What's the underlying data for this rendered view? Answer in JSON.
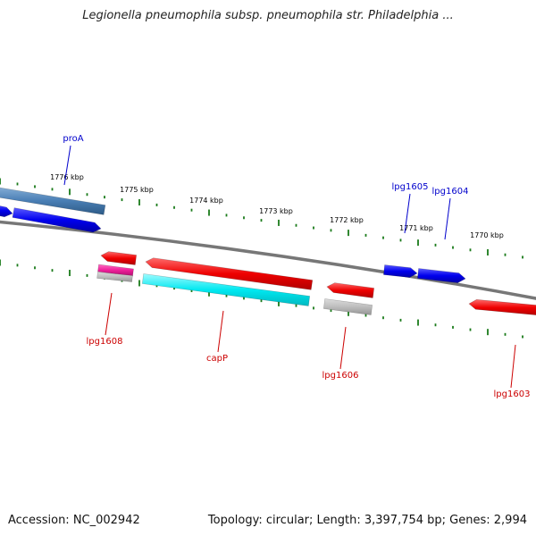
{
  "title": "Legionella pneumophila subsp. pneumophila str. Philadelphia ...",
  "footer": {
    "accession": "Accession: NC_002942",
    "stats": "Topology: circular; Length: 3,397,754 bp; Genes: 2,994"
  },
  "scale_labels": [
    "1776 kbp",
    "1775 kbp",
    "1774 kbp",
    "1773 kbp",
    "1772 kbp",
    "1771 kbp",
    "1770 kbp"
  ],
  "genes": [
    {
      "label": "proA",
      "strand": "forward"
    },
    {
      "label": "lpg1605",
      "strand": "forward"
    },
    {
      "label": "lpg1604",
      "strand": "forward"
    },
    {
      "label": "lpg1608",
      "strand": "reverse"
    },
    {
      "label": "capP",
      "strand": "reverse"
    },
    {
      "label": "lpg1606",
      "strand": "reverse"
    },
    {
      "label": "lpg1603",
      "strand": "reverse"
    }
  ],
  "colors": {
    "forward_label": "#0000cc",
    "reverse_label": "#cc0000",
    "forward_cds": "#0000ee",
    "reverse_cds": "#ee0000",
    "backbone": "#777777",
    "ticks": "#1a7a1a"
  }
}
